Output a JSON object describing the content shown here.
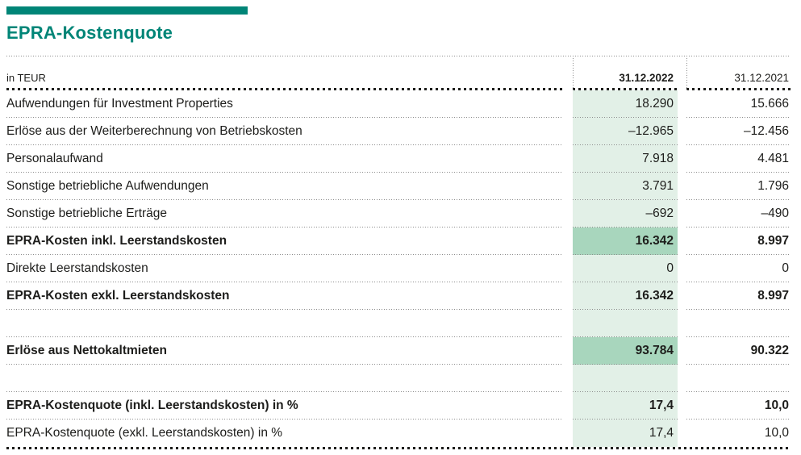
{
  "title": "EPRA-Kostenquote",
  "colors": {
    "accent": "#008577",
    "highlight_light": "#e2f0e7",
    "highlight_dark": "#a8d6bd",
    "text": "#1d1d1b"
  },
  "table": {
    "unit_label": "in TEUR",
    "col_2022": "31.12.2022",
    "col_2021": "31.12.2021",
    "rows": [
      {
        "label": "Aufwendungen für Investment Properties",
        "v2022": "18.290",
        "v2021": "15.666",
        "bold": false,
        "highlight": "light",
        "spacer": false
      },
      {
        "label": "Erlöse aus der Weiterberechnung von Betriebskosten",
        "v2022": "–12.965",
        "v2021": "–12.456",
        "bold": false,
        "highlight": "light",
        "spacer": false
      },
      {
        "label": "Personalaufwand",
        "v2022": "7.918",
        "v2021": "4.481",
        "bold": false,
        "highlight": "light",
        "spacer": false
      },
      {
        "label": "Sonstige betriebliche Aufwendungen",
        "v2022": "3.791",
        "v2021": "1.796",
        "bold": false,
        "highlight": "light",
        "spacer": false
      },
      {
        "label": "Sonstige betriebliche Erträge",
        "v2022": "–692",
        "v2021": "–490",
        "bold": false,
        "highlight": "light",
        "spacer": false
      },
      {
        "label": "EPRA-Kosten inkl. Leerstandskosten",
        "v2022": "16.342",
        "v2021": "8.997",
        "bold": true,
        "highlight": "dark",
        "spacer": false
      },
      {
        "label": "Direkte Leerstandskosten",
        "v2022": "0",
        "v2021": "0",
        "bold": false,
        "highlight": "light",
        "spacer": false
      },
      {
        "label": "EPRA-Kosten exkl. Leerstandskosten",
        "v2022": "16.342",
        "v2021": "8.997",
        "bold": true,
        "highlight": "light",
        "spacer": false
      },
      {
        "label": "",
        "v2022": "",
        "v2021": "",
        "bold": false,
        "highlight": "light",
        "spacer": true
      },
      {
        "label": "Erlöse aus Nettokaltmieten",
        "v2022": "93.784",
        "v2021": "90.322",
        "bold": true,
        "highlight": "dark",
        "spacer": false
      },
      {
        "label": "",
        "v2022": "",
        "v2021": "",
        "bold": false,
        "highlight": "light",
        "spacer": true
      },
      {
        "label": "EPRA-Kostenquote (inkl. Leerstandskosten) in %",
        "v2022": "17,4",
        "v2021": "10,0",
        "bold": true,
        "highlight": "light",
        "spacer": false
      },
      {
        "label": "EPRA-Kostenquote (exkl. Leerstandskosten) in %",
        "v2022": "17,4",
        "v2021": "10,0",
        "bold": false,
        "highlight": "light",
        "spacer": false
      }
    ]
  }
}
